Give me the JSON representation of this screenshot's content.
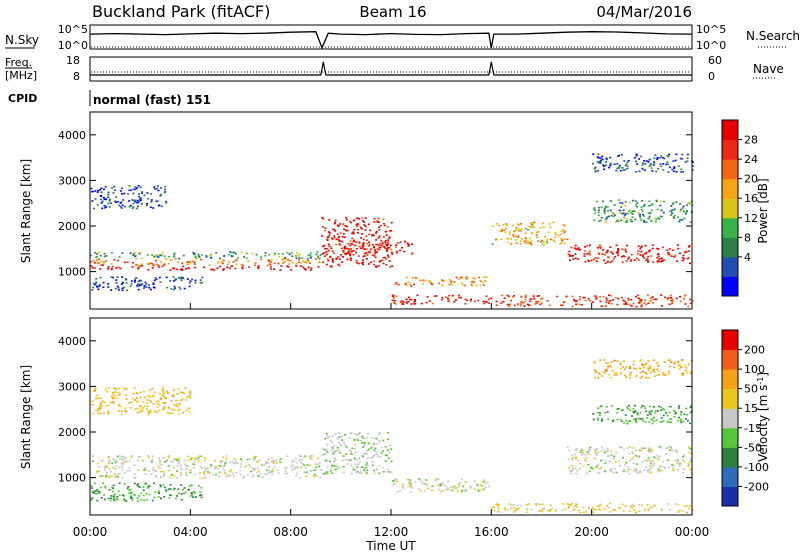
{
  "header": {
    "station": "Buckland Park (fitACF)",
    "beam": "Beam 16",
    "date": "04/Mar/2016"
  },
  "noise_panel": {
    "left_label": "N.Sky",
    "right_label": "N.Search",
    "ticks_left": [
      "10^5",
      "10^0"
    ],
    "ticks_right": [
      "10^5",
      "10^0"
    ]
  },
  "freq_panel": {
    "left_label_1": "Freq.",
    "left_label_2": "[MHz]",
    "right_label": "Nave",
    "ticks_left": [
      "18",
      "8"
    ],
    "ticks_right": [
      "60",
      "0"
    ]
  },
  "cpid": {
    "label": "CPID",
    "value": "normal (fast) 151"
  },
  "colorbars": {
    "power": {
      "label": "Power [dB]",
      "ticks": [
        "28",
        "24",
        "20",
        "16",
        "12",
        "8",
        "4"
      ],
      "colors": [
        "#0000ff",
        "#244cb4",
        "#2d7f4a",
        "#39b24a",
        "#d9c418",
        "#f6a317",
        "#f26716",
        "#ea2a15",
        "#e60000"
      ]
    },
    "velocity": {
      "label": "Velocity [m s",
      "label_sup": "-1",
      "label_end": "]",
      "ticks": [
        "200",
        "100",
        "50",
        "15",
        "-15",
        "-50",
        "-100",
        "-200"
      ],
      "colors": [
        "#1d2fa8",
        "#2f6bb8",
        "#2f7f40",
        "#58c63a",
        "#c8c8c8",
        "#e8c81f",
        "#f5a21a",
        "#f0601a",
        "#e60000"
      ]
    }
  },
  "chart_data": [
    {
      "type": "line",
      "title": "",
      "series": [
        {
          "name": "N.Sky",
          "x": [
            0,
            1,
            2,
            3,
            4,
            5,
            6,
            7,
            8,
            9,
            9.25,
            9.5,
            10,
            11,
            12,
            13,
            14,
            15,
            15.9,
            16,
            16.1,
            17,
            18,
            19,
            20,
            21,
            22,
            23,
            24
          ],
          "y": [
            0.62,
            0.64,
            0.62,
            0.6,
            0.63,
            0.66,
            0.64,
            0.66,
            0.7,
            0.72,
            0.05,
            0.66,
            0.62,
            0.6,
            0.64,
            0.61,
            0.6,
            0.64,
            0.66,
            0.05,
            0.62,
            0.62,
            0.66,
            0.7,
            0.72,
            0.71,
            0.67,
            0.63,
            0.62
          ]
        }
      ],
      "ylim": [
        0,
        1
      ],
      "xlim": [
        0,
        24
      ]
    },
    {
      "type": "line",
      "title": "",
      "series": [
        {
          "name": "Freq.",
          "x": [
            0,
            9.2,
            9.3,
            9.4,
            15.9,
            16.0,
            16.1,
            24
          ],
          "y": [
            0.25,
            0.25,
            0.8,
            0.25,
            0.25,
            0.8,
            0.25,
            0.25
          ]
        }
      ],
      "ylim": [
        0,
        1
      ],
      "xlim": [
        0,
        24
      ]
    },
    {
      "type": "heatmap",
      "title": "",
      "ylabel": "Slant Range [km]",
      "xlim": [
        0,
        24
      ],
      "ylim": [
        180,
        4500
      ],
      "x_ticks": [],
      "y_ticks": [
        "1000",
        "2000",
        "3000",
        "4000"
      ],
      "colorbar_label": "Power [dB]",
      "bands": [
        {
          "t0": 0.0,
          "t1": 9.2,
          "r0": 1050,
          "r1": 1150,
          "value": 27
        },
        {
          "t0": 0.0,
          "t1": 9.2,
          "r0": 1150,
          "r1": 1300,
          "value": 20
        },
        {
          "t0": 0.0,
          "t1": 9.2,
          "r0": 1300,
          "r1": 1450,
          "value": 12
        },
        {
          "t0": 0.0,
          "t1": 4.5,
          "r0": 600,
          "r1": 900,
          "value": 8
        },
        {
          "t0": 0.0,
          "t1": 3.0,
          "r0": 2400,
          "r1": 2900,
          "value": 8
        },
        {
          "t0": 9.2,
          "t1": 12.0,
          "r0": 1100,
          "r1": 2200,
          "value": 26
        },
        {
          "t0": 10.0,
          "t1": 13.0,
          "r0": 1400,
          "r1": 1700,
          "value": 25
        },
        {
          "t0": 12.0,
          "t1": 16.0,
          "r0": 300,
          "r1": 500,
          "value": 26
        },
        {
          "t0": 12.0,
          "t1": 16.0,
          "r0": 700,
          "r1": 900,
          "value": 20
        },
        {
          "t0": 16.0,
          "t1": 24.0,
          "r0": 250,
          "r1": 500,
          "value": 24
        },
        {
          "t0": 16.0,
          "t1": 19.0,
          "r0": 1600,
          "r1": 2100,
          "value": 18
        },
        {
          "t0": 19.0,
          "t1": 24.0,
          "r0": 1200,
          "r1": 1600,
          "value": 26
        },
        {
          "t0": 20.0,
          "t1": 24.0,
          "r0": 2100,
          "r1": 2600,
          "value": 12
        },
        {
          "t0": 20.0,
          "t1": 24.0,
          "r0": 3200,
          "r1": 3600,
          "value": 8
        }
      ]
    },
    {
      "type": "heatmap",
      "title": "",
      "ylabel": "Slant Range [km]",
      "xlabel": "Time UT",
      "xlim": [
        0,
        24
      ],
      "ylim": [
        180,
        4500
      ],
      "x_ticks": [
        "00:00",
        "04:00",
        "08:00",
        "12:00",
        "16:00",
        "20:00",
        "00:00"
      ],
      "y_ticks": [
        "1000",
        "2000",
        "3000",
        "4000"
      ],
      "colorbar_label": "Velocity [m s-1]",
      "bands": [
        {
          "t0": 0.0,
          "t1": 9.2,
          "r0": 1000,
          "r1": 1500,
          "value": 0
        },
        {
          "t0": 0.0,
          "t1": 4.5,
          "r0": 500,
          "r1": 900,
          "value": -60
        },
        {
          "t0": 0.0,
          "t1": 4.0,
          "r0": 2400,
          "r1": 3000,
          "value": 60
        },
        {
          "t0": 9.2,
          "t1": 12.0,
          "r0": 1100,
          "r1": 2000,
          "value": -20
        },
        {
          "t0": 12.0,
          "t1": 16.0,
          "r0": 700,
          "r1": 1000,
          "value": 0
        },
        {
          "t0": 16.0,
          "t1": 24.0,
          "r0": 250,
          "r1": 450,
          "value": 40
        },
        {
          "t0": 19.0,
          "t1": 24.0,
          "r0": 1100,
          "r1": 1700,
          "value": 0
        },
        {
          "t0": 20.0,
          "t1": 24.0,
          "r0": 2200,
          "r1": 2600,
          "value": -60
        },
        {
          "t0": 20.0,
          "t1": 24.0,
          "r0": 3200,
          "r1": 3600,
          "value": 80
        }
      ]
    }
  ],
  "axis": {
    "x_title": "Time UT",
    "y_title": "Slant Range [km]"
  }
}
